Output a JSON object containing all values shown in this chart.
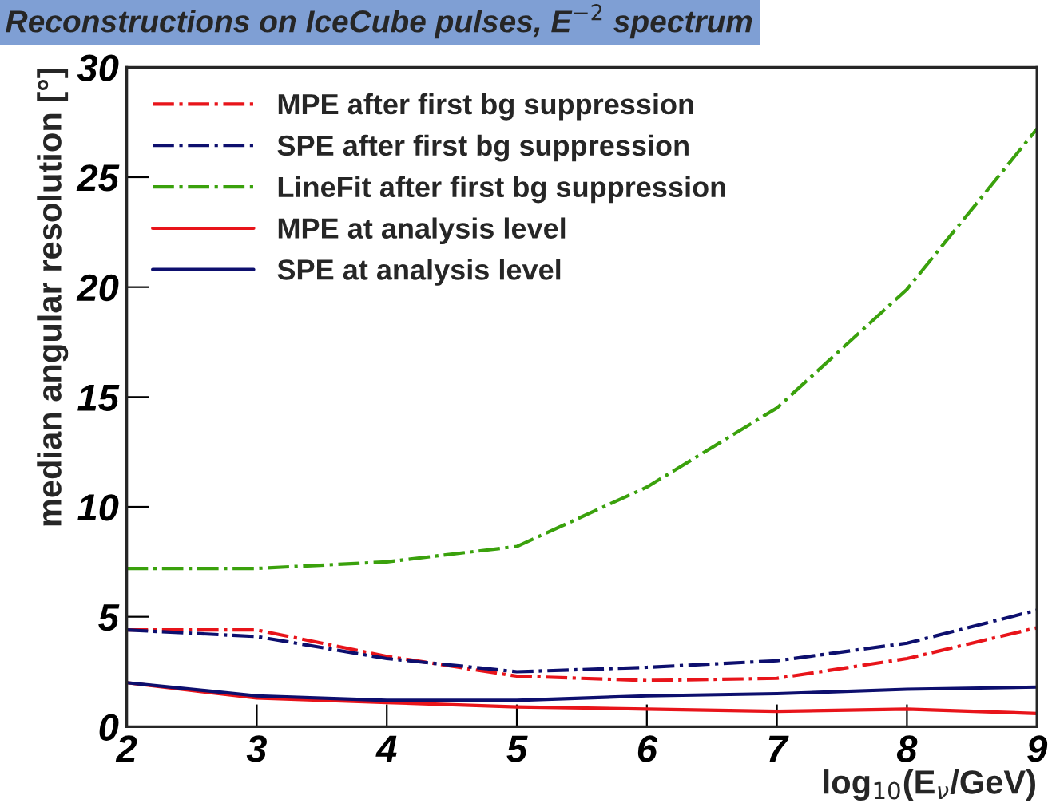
{
  "chart_data": {
    "type": "line",
    "title": "Reconstructions on IceCube pulses, E$^{−2}$ spectrum",
    "xlabel": "log$_{10}$(E$_{ν}$/GeV)",
    "ylabel": "median angular resolution [°]",
    "x": [
      2,
      3,
      4,
      5,
      6,
      7,
      8,
      9
    ],
    "series": [
      {
        "name": "MPE after first bg suppression",
        "color": "#e8141a",
        "line_style": "dashdot",
        "values": [
          4.4,
          4.4,
          3.2,
          2.3,
          2.1,
          2.2,
          3.1,
          4.5
        ]
      },
      {
        "name": "SPE after first bg suppression",
        "color": "#0d0f6e",
        "line_style": "dashdot",
        "values": [
          4.4,
          4.1,
          3.1,
          2.5,
          2.7,
          3.0,
          3.8,
          5.3
        ]
      },
      {
        "name": "LineFit after first bg suppression",
        "color": "#3aa10c",
        "line_style": "dashdot",
        "values": [
          7.2,
          7.2,
          7.5,
          8.2,
          10.9,
          14.5,
          19.9,
          27.2
        ]
      },
      {
        "name": "MPE at analysis level",
        "color": "#e8141a",
        "line_style": "solid",
        "values": [
          2.0,
          1.3,
          1.1,
          0.9,
          0.8,
          0.7,
          0.8,
          0.6
        ]
      },
      {
        "name": "SPE at analysis level",
        "color": "#0d0f6e",
        "line_style": "solid",
        "values": [
          2.0,
          1.4,
          1.2,
          1.2,
          1.4,
          1.5,
          1.7,
          1.8
        ]
      }
    ],
    "xlim": [
      2,
      9
    ],
    "xticks": [
      2,
      3,
      4,
      5,
      6,
      7,
      8,
      9
    ],
    "ylim": [
      0,
      30
    ],
    "yticks": [
      0,
      5,
      10,
      15,
      20,
      25,
      30
    ],
    "grid": false,
    "legend": "top left",
    "marker": "none"
  }
}
